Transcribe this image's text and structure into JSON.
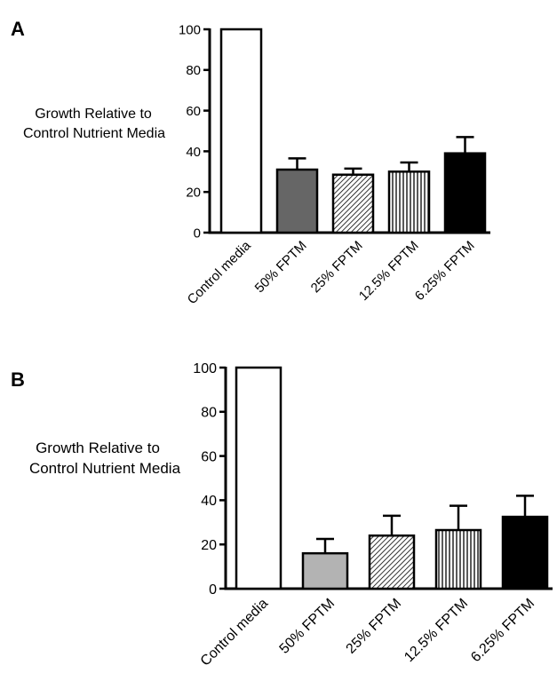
{
  "chart_data": [
    {
      "type": "bar",
      "panel_label": "A",
      "ylabel": "Growth Relative to Control Nutrient Media",
      "ylabel_lines": [
        "Growth Relative to",
        "Control Nutrient Media"
      ],
      "categories": [
        "Control media",
        "50% FPTM",
        "25% FPTM",
        "12.5% FPTM",
        "6.25% FPTM"
      ],
      "values": [
        100,
        31,
        28.5,
        30,
        39
      ],
      "error_upper": [
        0,
        5.5,
        3,
        4.5,
        8
      ],
      "fills": [
        "white",
        "dark-gray",
        "diagonal-hatch",
        "vertical-hatch",
        "black"
      ],
      "ylim": [
        0,
        100
      ],
      "yticks": [
        0,
        20,
        40,
        60,
        80,
        100
      ],
      "grid": false,
      "legend": "none"
    },
    {
      "type": "bar",
      "panel_label": "B",
      "ylabel": "Growth Relative to Control Nutrient Media",
      "ylabel_lines": [
        "Growth Relative to",
        "Control Nutrient Media"
      ],
      "categories": [
        "Control media",
        "50% FPTM",
        "25% FPTM",
        "12.5% FPTM",
        "6.25% FPTM"
      ],
      "values": [
        100,
        16,
        24,
        26.5,
        32.5
      ],
      "error_upper": [
        0,
        6.5,
        9,
        11,
        9.5
      ],
      "fills": [
        "white",
        "light-gray",
        "diagonal-hatch",
        "vertical-hatch",
        "black"
      ],
      "ylim": [
        0,
        100
      ],
      "yticks": [
        0,
        20,
        40,
        60,
        80,
        100
      ],
      "grid": false,
      "legend": "none"
    }
  ]
}
